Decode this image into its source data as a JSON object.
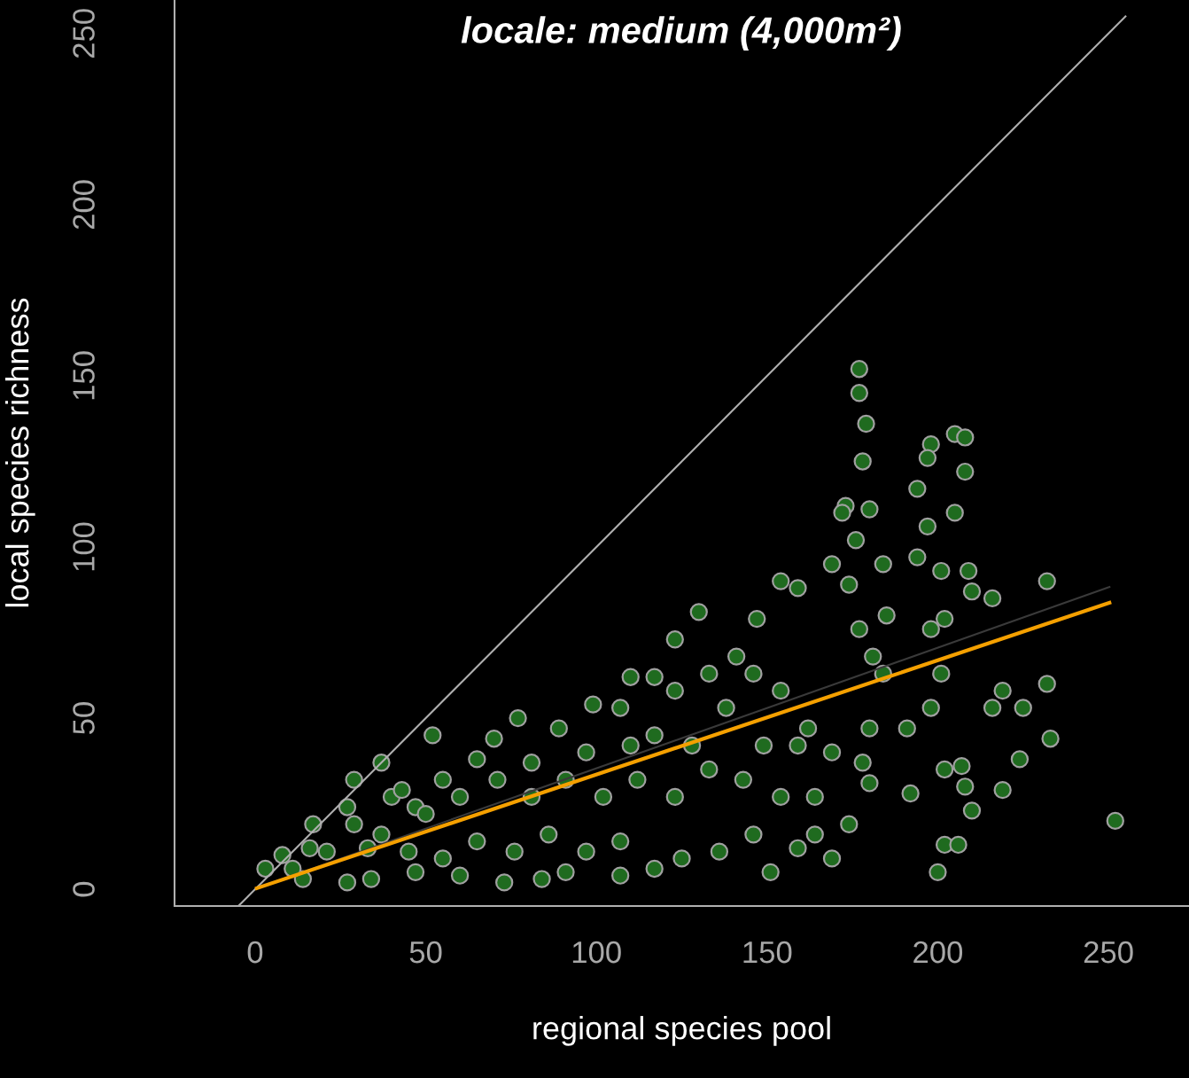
{
  "chart_data": {
    "type": "scatter",
    "title": "locale: medium (4,000m²)",
    "xlabel": "regional species pool",
    "ylabel": "local species richness",
    "xlim": [
      -23.6,
      273.6
    ],
    "ylim": [
      -4.9,
      259.8
    ],
    "xticks": [
      0,
      50,
      100,
      150,
      200,
      250
    ],
    "yticks": [
      0,
      50,
      100,
      150,
      200,
      250
    ],
    "grid": false,
    "legend": false,
    "series": [
      {
        "marker": "circle",
        "color": "#1f6b1f",
        "x": [
          252,
          232,
          232,
          233,
          225,
          224,
          219,
          216,
          210,
          205,
          208,
          208,
          205,
          198,
          197,
          194,
          197,
          194,
          201,
          209,
          202,
          198,
          201,
          198,
          191,
          192,
          202,
          207,
          210,
          208,
          200,
          202,
          206,
          219,
          216,
          177,
          177,
          179,
          178,
          173,
          180,
          176,
          172,
          169,
          174,
          184,
          185,
          184,
          181,
          177,
          180,
          178,
          180,
          174,
          169,
          164,
          159,
          151,
          154,
          159,
          147,
          141,
          130,
          123,
          117,
          110,
          107,
          91,
          84,
          73,
          60,
          47,
          34,
          27,
          14,
          3,
          8,
          17,
          27,
          37,
          52,
          65,
          77,
          70,
          89,
          99,
          107,
          110,
          123,
          133,
          138,
          146,
          154,
          162,
          169,
          164,
          154,
          146,
          136,
          125,
          117,
          107,
          97,
          86,
          76,
          65,
          55,
          45,
          37,
          47,
          60,
          71,
          81,
          91,
          102,
          112,
          123,
          133,
          143,
          149,
          159,
          128,
          117,
          97,
          81,
          55,
          40,
          29,
          21,
          11,
          16,
          33,
          29,
          43,
          50
        ],
        "values": [
          20,
          90,
          60,
          44,
          53,
          38,
          29,
          85,
          87,
          133,
          132,
          122,
          110,
          130,
          126,
          117,
          106,
          97,
          93,
          93,
          79,
          76,
          63,
          53,
          47,
          28,
          35,
          36,
          23,
          30,
          5,
          13,
          13,
          58,
          53,
          152,
          145,
          136,
          125,
          112,
          111,
          102,
          110,
          95,
          89,
          95,
          80,
          63,
          68,
          76,
          47,
          37,
          31,
          19,
          9,
          16,
          12,
          5,
          90,
          88,
          79,
          68,
          81,
          73,
          62,
          62,
          4,
          5,
          3,
          2,
          4,
          5,
          3,
          2,
          3,
          6,
          10,
          19,
          24,
          37,
          45,
          38,
          50,
          44,
          47,
          54,
          53,
          42,
          58,
          63,
          53,
          63,
          58,
          47,
          40,
          27,
          27,
          16,
          11,
          9,
          6,
          14,
          11,
          16,
          11,
          14,
          9,
          11,
          16,
          24,
          27,
          32,
          27,
          32,
          27,
          32,
          27,
          35,
          32,
          42,
          42,
          42,
          45,
          40,
          37,
          32,
          27,
          19,
          11,
          6,
          12,
          12,
          32,
          29,
          22
        ]
      },
      {
        "type": "line",
        "marker": "none",
        "color": "#b0b0b0",
        "x": [
          -4.7,
          255
        ],
        "values": [
          -4.7,
          255
        ]
      },
      {
        "type": "line",
        "marker": "none",
        "color": "#3a3a3a",
        "x": [
          0.5,
          250.3
        ],
        "values": [
          0.3,
          88.3
        ]
      },
      {
        "type": "line",
        "marker": "none",
        "color": "#f5a000",
        "x": [
          0.5,
          250.3
        ],
        "values": [
          0.3,
          83.7
        ]
      }
    ]
  }
}
